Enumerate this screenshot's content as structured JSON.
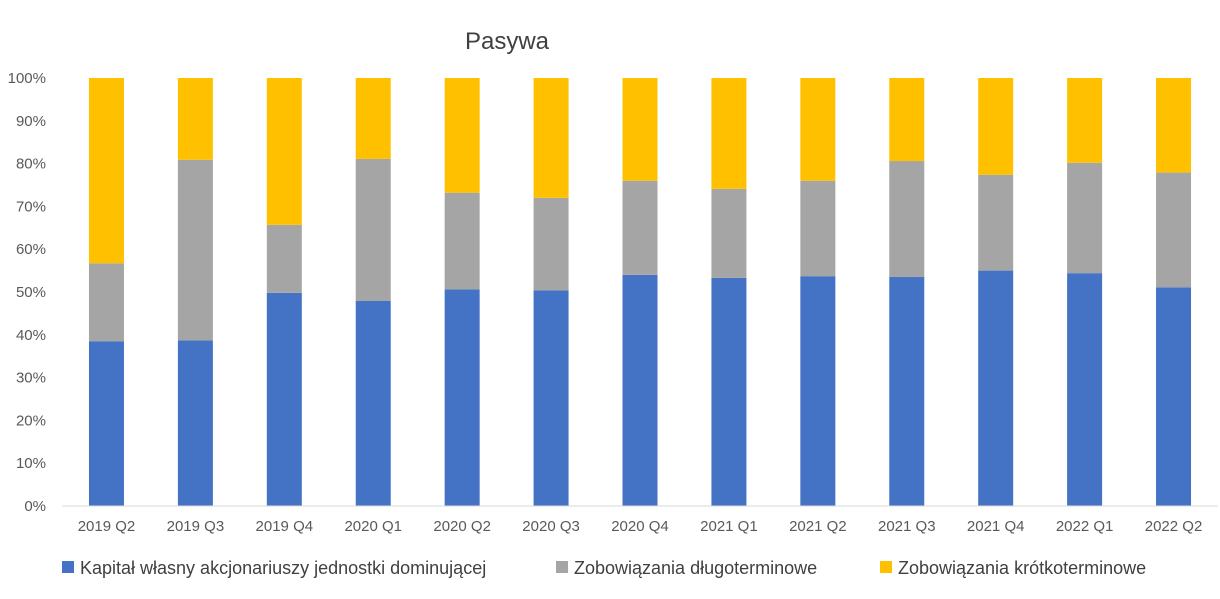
{
  "chart_data": {
    "type": "bar",
    "stacked": true,
    "percent_stacked": true,
    "title": "Pasywa",
    "categories": [
      "2019 Q2",
      "2019 Q3",
      "2019 Q4",
      "2020 Q1",
      "2020 Q2",
      "2020 Q3",
      "2020 Q4",
      "2021 Q1",
      "2021 Q2",
      "2021 Q3",
      "2021 Q4",
      "2022 Q1",
      "2022 Q2"
    ],
    "series": [
      {
        "name": "Kapitał własny akcjonariuszy jednostki dominującej",
        "color": "#4472C4",
        "values": [
          38.5,
          38.7,
          49.8,
          47.9,
          50.6,
          50.4,
          54.0,
          53.3,
          53.7,
          53.5,
          55.0,
          54.4,
          51.1
        ]
      },
      {
        "name": "Zobowiązania długoterminowe",
        "color": "#A5A5A5",
        "values": [
          18.2,
          42.2,
          15.9,
          33.2,
          22.6,
          21.6,
          22.0,
          20.8,
          22.3,
          27.1,
          22.4,
          25.8,
          26.8
        ]
      },
      {
        "name": "Zobowiązania krótkoterminowe",
        "color": "#FFC000",
        "values": [
          43.3,
          19.1,
          34.3,
          18.9,
          26.8,
          28.0,
          24.0,
          25.9,
          24.0,
          19.4,
          22.6,
          19.8,
          22.1
        ]
      }
    ],
    "yticks": [
      "0%",
      "10%",
      "20%",
      "30%",
      "40%",
      "50%",
      "60%",
      "70%",
      "80%",
      "90%",
      "100%"
    ],
    "ylim": [
      0,
      100
    ],
    "grid": false,
    "legend_position": "bottom"
  }
}
